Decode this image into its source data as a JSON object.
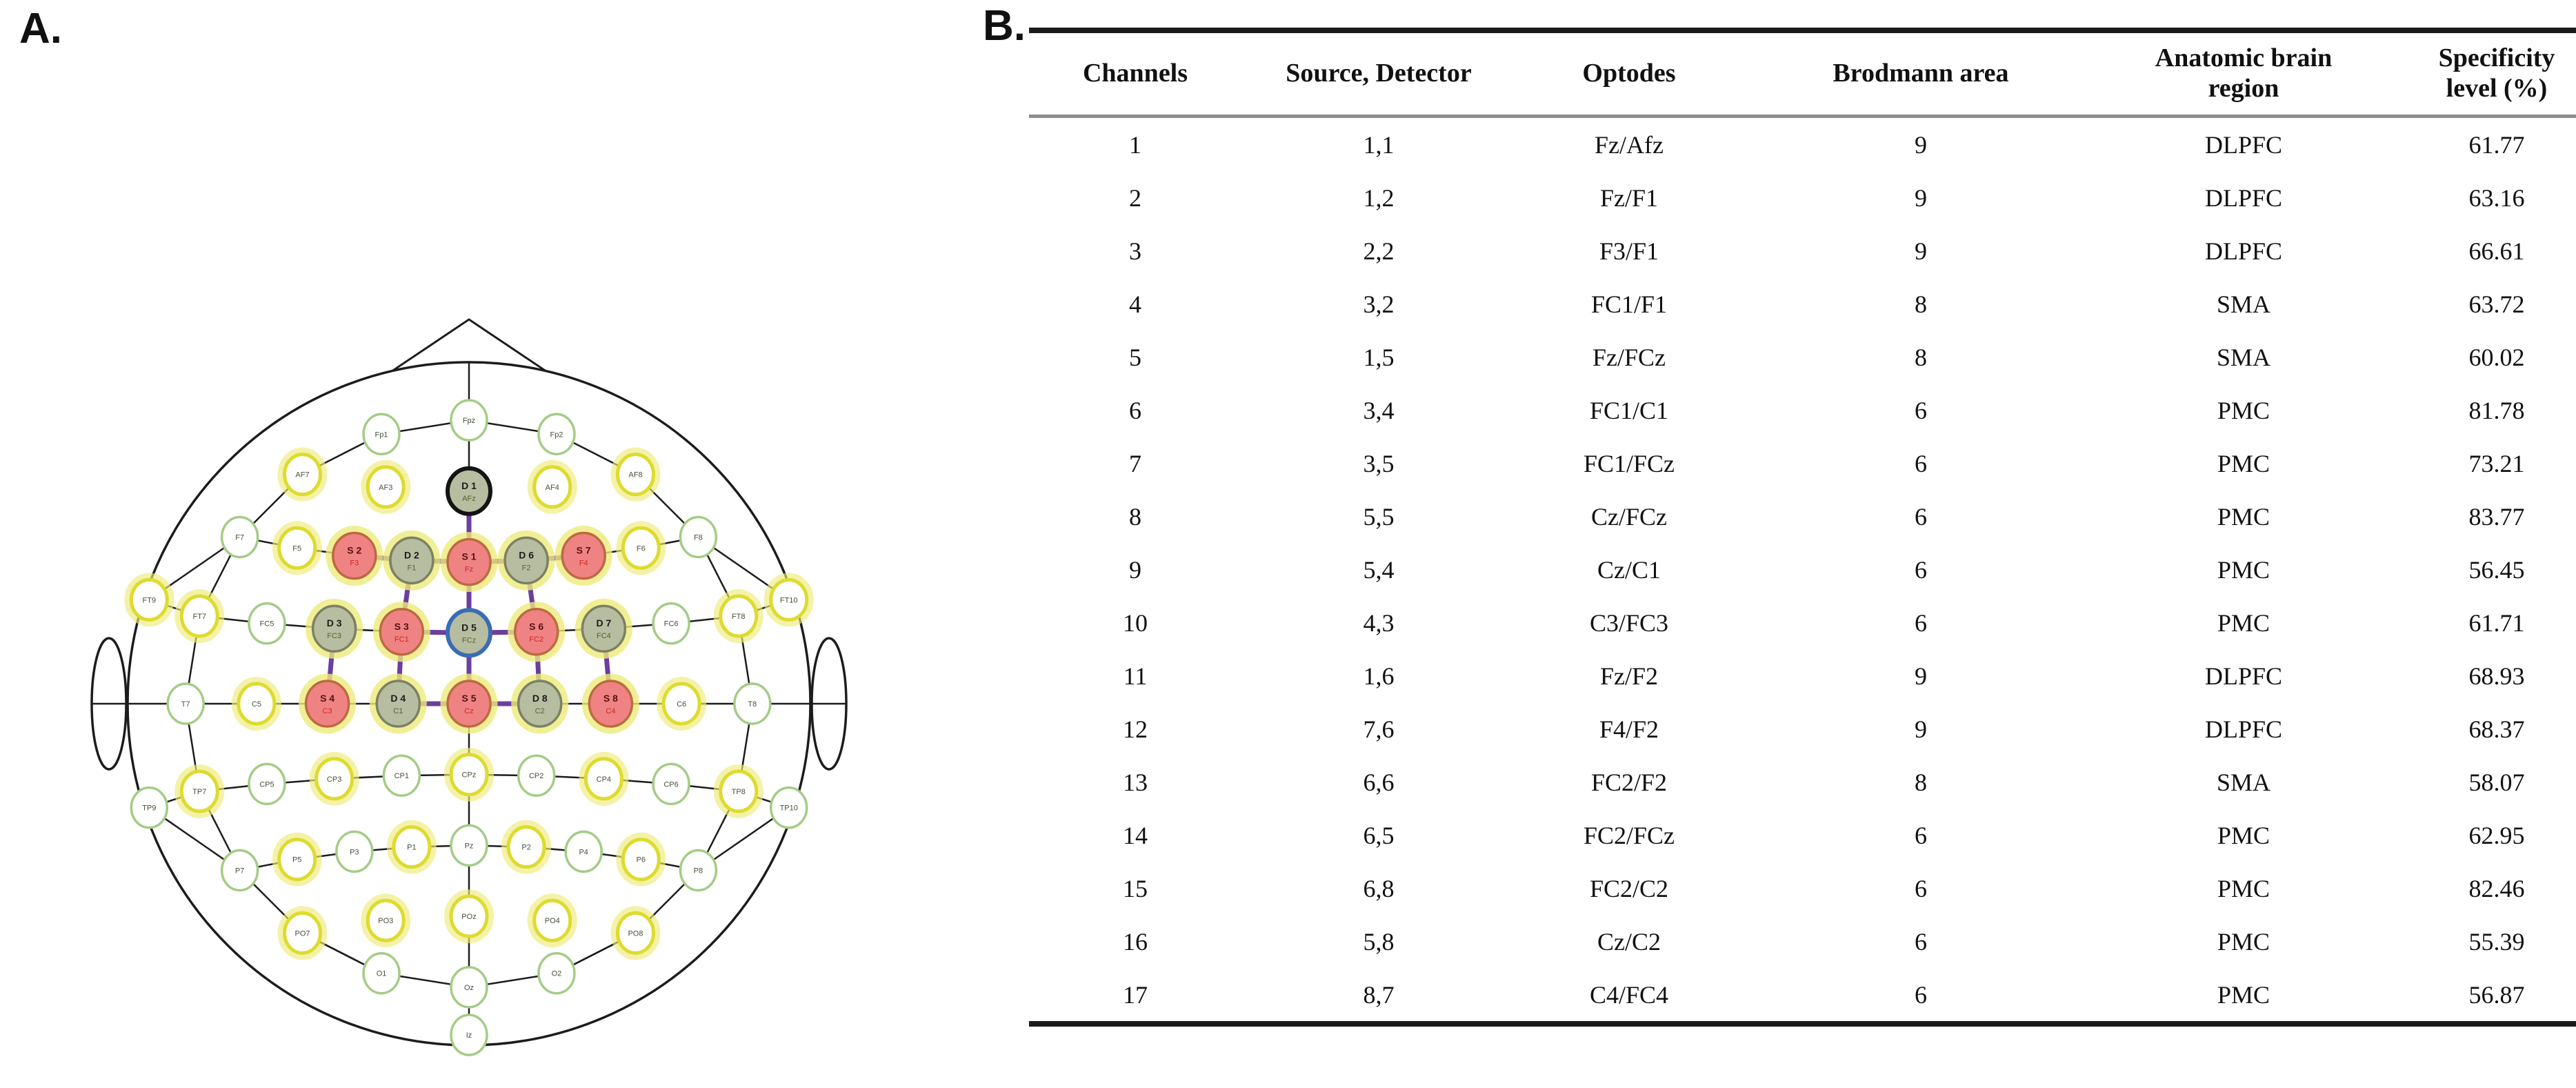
{
  "panel_a": {
    "label": "A.",
    "description": "10-10 EEG layout head schematic with fNIRS optode montage",
    "colors": {
      "source_fill": "#ef8383",
      "source_ring": "#bc6a3f",
      "source_id_text": "#5a1010",
      "source_name_text": "#d42222",
      "detector_fill": "#b7bda0",
      "detector_ring": "#7c8162",
      "detector_id_text": "#1c1c1c",
      "detector_name_text": "#55622e",
      "d1_ring": "#141414",
      "d5_ring": "#3a6cb4",
      "yellow_ring": "#dedb2f",
      "yellow_glow": "#eeeb7a",
      "green_ring": "#a3cc85",
      "channel_line": "#6a3fa0",
      "grid_line": "#1c1c1c",
      "electrode_label": "#44503a"
    },
    "electrode_rows": {
      "fp": [
        "Fp1",
        "Fpz",
        "Fp2"
      ],
      "af": [
        "AF7",
        "AF3",
        "AFz",
        "AF4",
        "AF8"
      ],
      "f": [
        "F7",
        "F5",
        "F3",
        "F1",
        "Fz",
        "F2",
        "F4",
        "F6",
        "F8"
      ],
      "fc": [
        "FT7",
        "FC5",
        "FC3",
        "FC1",
        "FCz",
        "FC2",
        "FC4",
        "FC6",
        "FT8"
      ],
      "c": [
        "T7",
        "C5",
        "C3",
        "C1",
        "Cz",
        "C2",
        "C4",
        "C6",
        "T8"
      ],
      "cp": [
        "TP7",
        "CP5",
        "CP3",
        "CP1",
        "CPz",
        "CP2",
        "CP4",
        "CP6",
        "TP8"
      ],
      "p": [
        "P7",
        "P5",
        "P3",
        "P1",
        "Pz",
        "P2",
        "P4",
        "P6",
        "P8"
      ],
      "po": [
        "PO7",
        "PO3",
        "POz",
        "PO4",
        "PO8"
      ],
      "o": [
        "O1",
        "Oz",
        "O2"
      ],
      "outer": [
        "FT9",
        "FT10",
        "TP9",
        "TP10",
        "Iz"
      ]
    },
    "yellow_ring_electrodes": [
      "AF7",
      "AF3",
      "AF4",
      "AF8",
      "F5",
      "F6",
      "FT9",
      "FT7",
      "FT8",
      "FT10",
      "C5",
      "C6",
      "TP7",
      "TP8",
      "CP3",
      "CPz",
      "CP4",
      "P5",
      "P1",
      "P2",
      "P6",
      "PO7",
      "PO3",
      "POz",
      "PO4",
      "PO8"
    ],
    "optodes": {
      "sources": [
        {
          "id": "S1",
          "electrode": "Fz"
        },
        {
          "id": "S2",
          "electrode": "F3"
        },
        {
          "id": "S3",
          "electrode": "FC1"
        },
        {
          "id": "S4",
          "electrode": "C3"
        },
        {
          "id": "S5",
          "electrode": "Cz"
        },
        {
          "id": "S6",
          "electrode": "FC2"
        },
        {
          "id": "S7",
          "electrode": "F4"
        },
        {
          "id": "S8",
          "electrode": "C4"
        }
      ],
      "detectors": [
        {
          "id": "D1",
          "electrode": "AFz",
          "ring": "black"
        },
        {
          "id": "D2",
          "electrode": "F1",
          "ring": "yellow"
        },
        {
          "id": "D3",
          "electrode": "FC3",
          "ring": "yellow"
        },
        {
          "id": "D4",
          "electrode": "C1",
          "ring": "yellow"
        },
        {
          "id": "D5",
          "electrode": "FCz",
          "ring": "blue"
        },
        {
          "id": "D6",
          "electrode": "F2",
          "ring": "yellow"
        },
        {
          "id": "D7",
          "electrode": "FC4",
          "ring": "yellow"
        },
        {
          "id": "D8",
          "electrode": "C2",
          "ring": "yellow"
        }
      ]
    },
    "channel_pairs": [
      {
        "ch": 1,
        "source": "S1",
        "detector": "D1"
      },
      {
        "ch": 2,
        "source": "S1",
        "detector": "D2"
      },
      {
        "ch": 3,
        "source": "S2",
        "detector": "D2"
      },
      {
        "ch": 4,
        "source": "S3",
        "detector": "D2"
      },
      {
        "ch": 5,
        "source": "S1",
        "detector": "D5"
      },
      {
        "ch": 6,
        "source": "S3",
        "detector": "D4"
      },
      {
        "ch": 7,
        "source": "S3",
        "detector": "D5"
      },
      {
        "ch": 8,
        "source": "S5",
        "detector": "D5"
      },
      {
        "ch": 9,
        "source": "S5",
        "detector": "D4"
      },
      {
        "ch": 10,
        "source": "S4",
        "detector": "D3"
      },
      {
        "ch": 11,
        "source": "S1",
        "detector": "D6"
      },
      {
        "ch": 12,
        "source": "S7",
        "detector": "D6"
      },
      {
        "ch": 13,
        "source": "S6",
        "detector": "D6"
      },
      {
        "ch": 14,
        "source": "S6",
        "detector": "D5"
      },
      {
        "ch": 15,
        "source": "S6",
        "detector": "D8"
      },
      {
        "ch": 16,
        "source": "S5",
        "detector": "D8"
      },
      {
        "ch": 17,
        "source": "S8",
        "detector": "D7"
      }
    ]
  },
  "panel_b": {
    "label": "B.",
    "table": {
      "headers": [
        "Channels",
        "Source, Detector",
        "Optodes",
        "Brodmann area",
        "Anatomic brain\nregion",
        "Specificity\nlevel (%)"
      ],
      "rows": [
        [
          "1",
          "1,1",
          "Fz/Afz",
          "9",
          "DLPFC",
          "61.77"
        ],
        [
          "2",
          "1,2",
          "Fz/F1",
          "9",
          "DLPFC",
          "63.16"
        ],
        [
          "3",
          "2,2",
          "F3/F1",
          "9",
          "DLPFC",
          "66.61"
        ],
        [
          "4",
          "3,2",
          "FC1/F1",
          "8",
          "SMA",
          "63.72"
        ],
        [
          "5",
          "1,5",
          "Fz/FCz",
          "8",
          "SMA",
          "60.02"
        ],
        [
          "6",
          "3,4",
          "FC1/C1",
          "6",
          "PMC",
          "81.78"
        ],
        [
          "7",
          "3,5",
          "FC1/FCz",
          "6",
          "PMC",
          "73.21"
        ],
        [
          "8",
          "5,5",
          "Cz/FCz",
          "6",
          "PMC",
          "83.77"
        ],
        [
          "9",
          "5,4",
          "Cz/C1",
          "6",
          "PMC",
          "56.45"
        ],
        [
          "10",
          "4,3",
          "C3/FC3",
          "6",
          "PMC",
          "61.71"
        ],
        [
          "11",
          "1,6",
          "Fz/F2",
          "9",
          "DLPFC",
          "68.93"
        ],
        [
          "12",
          "7,6",
          "F4/F2",
          "9",
          "DLPFC",
          "68.37"
        ],
        [
          "13",
          "6,6",
          "FC2/F2",
          "8",
          "SMA",
          "58.07"
        ],
        [
          "14",
          "6,5",
          "FC2/FCz",
          "6",
          "PMC",
          "62.95"
        ],
        [
          "15",
          "6,8",
          "FC2/C2",
          "6",
          "PMC",
          "82.46"
        ],
        [
          "16",
          "5,8",
          "Cz/C2",
          "6",
          "PMC",
          "55.39"
        ],
        [
          "17",
          "8,7",
          "C4/FC4",
          "6",
          "PMC",
          "56.87"
        ]
      ]
    }
  }
}
